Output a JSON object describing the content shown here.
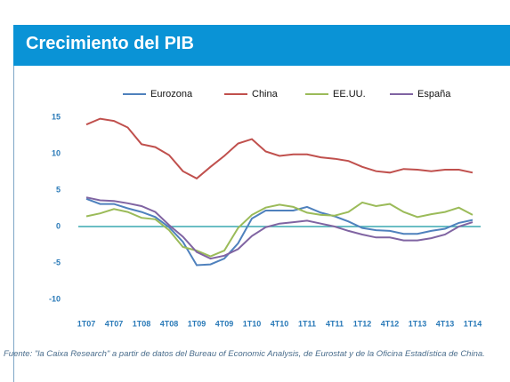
{
  "chart_data": {
    "type": "line",
    "title": "Crecimiento del PIB",
    "categories": [
      "1T07",
      null,
      "4T07",
      null,
      "1T08",
      null,
      "4T08",
      null,
      "1T09",
      null,
      "4T09",
      null,
      "1T10",
      null,
      "4T10",
      null,
      "1T11",
      null,
      "4T11",
      null,
      "1T12",
      null,
      "4T12",
      null,
      "1T13",
      null,
      "4T13",
      null,
      "1T14"
    ],
    "series": [
      {
        "name": "Eurozona",
        "color": "#4f81bd",
        "values": [
          3.8,
          3.1,
          3.1,
          2.5,
          2.0,
          1.3,
          -0.1,
          -2.1,
          -5.3,
          -5.2,
          -4.4,
          -2.3,
          1.1,
          2.2,
          2.2,
          2.2,
          2.7,
          1.9,
          1.4,
          0.7,
          -0.2,
          -0.5,
          -0.6,
          -1.0,
          -1.0,
          -0.6,
          -0.3,
          0.5,
          0.9
        ]
      },
      {
        "name": "China",
        "color": "#c0504d",
        "values": [
          14.0,
          14.8,
          14.5,
          13.6,
          11.3,
          10.9,
          9.8,
          7.6,
          6.6,
          8.2,
          9.7,
          11.4,
          12.0,
          10.3,
          9.7,
          9.9,
          9.9,
          9.5,
          9.3,
          9.0,
          8.2,
          7.6,
          7.4,
          7.9,
          7.8,
          7.6,
          7.8,
          7.8,
          7.4
        ]
      },
      {
        "name": "EE.UU.",
        "color": "#9bbb59",
        "values": [
          1.4,
          1.8,
          2.4,
          2.0,
          1.2,
          1.0,
          -0.5,
          -2.8,
          -3.3,
          -4.1,
          -3.3,
          -0.2,
          1.6,
          2.6,
          3.0,
          2.7,
          1.9,
          1.6,
          1.5,
          2.0,
          3.3,
          2.8,
          3.1,
          2.0,
          1.3,
          1.7,
          2.0,
          2.6,
          1.6
        ]
      },
      {
        "name": "España",
        "color": "#8064a2",
        "values": [
          4.0,
          3.6,
          3.5,
          3.2,
          2.8,
          2.0,
          0.2,
          -1.4,
          -3.5,
          -4.4,
          -4.0,
          -3.1,
          -1.3,
          -0.1,
          0.4,
          0.6,
          0.8,
          0.4,
          0.0,
          -0.6,
          -1.1,
          -1.5,
          -1.5,
          -1.9,
          -1.9,
          -1.6,
          -1.1,
          0.0,
          0.6
        ]
      }
    ],
    "ylim": [
      -10,
      15
    ],
    "yticks": [
      -10,
      -5,
      0,
      5,
      10,
      15
    ],
    "grid": false,
    "source": "Fuente: \"la Caixa Research\" a partir de datos del Bureau of Economic Analysis, de Eurostat y de la Oficina Estadística de China."
  }
}
